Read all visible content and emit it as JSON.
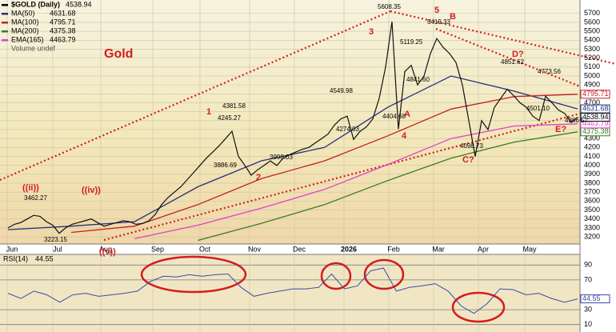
{
  "chart_data": {
    "type": "line",
    "title": "$GOLD (Daily)",
    "last": 4538.94,
    "annotation": "Gold",
    "x_labels": [
      "Jun",
      "Jul",
      "Aug",
      "Sep",
      "Oct",
      "Nov",
      "Dec",
      "2026",
      "Feb",
      "Mar",
      "Apr",
      "May"
    ],
    "ylim": [
      3120,
      5850
    ],
    "yticks": [
      3200,
      3300,
      3400,
      3500,
      3600,
      3700,
      3800,
      3900,
      4000,
      4100,
      4200,
      4300,
      4400,
      4500,
      4600,
      4700,
      4800,
      4900,
      5000,
      5100,
      5200,
      5300,
      5400,
      5500,
      5600,
      5700
    ],
    "grid": true,
    "series": [
      {
        "color": "#111111",
        "values": [
          3300,
          3340,
          3360,
          3400,
          3440,
          3430,
          3370,
          3330,
          3240,
          3300,
          3340,
          3360,
          3380,
          3400,
          3360,
          3320,
          3340,
          3360,
          3380,
          3370,
          3340,
          3350,
          3380,
          3450,
          3560,
          3640,
          3700,
          3760,
          3840,
          3920,
          4000,
          4080,
          4150,
          4220,
          4300,
          4381,
          4100,
          4000,
          3890,
          3950,
          4000,
          4050,
          3998,
          4080,
          4120,
          4150,
          4180,
          4200,
          4250,
          4300,
          4350,
          4450,
          4520,
          4550,
          4290,
          4380,
          4430,
          4520,
          4750,
          5100,
          5608,
          4405,
          5050,
          5119,
          4900,
          5000,
          5250,
          5419,
          5320,
          5250,
          5150,
          4900,
          4500,
          4099,
          4500,
          4400,
          4650,
          4750,
          4852,
          4780,
          4700,
          4650,
          4550,
          4501,
          4774,
          4700,
          4620,
          4580,
          4480,
          4539
        ]
      }
    ],
    "overlays": [
      {
        "name": "MA(50)",
        "last": 4631.68,
        "color": "#26317e",
        "values": [
          3280,
          3320,
          3370,
          3760,
          4050,
          4200,
          4650,
          5000,
          4830,
          4632
        ]
      },
      {
        "name": "MA(100)",
        "last": 4795.71,
        "color": "#c42020",
        "values": [
          null,
          3250,
          3320,
          3560,
          3850,
          4050,
          4330,
          4630,
          4770,
          4796
        ]
      },
      {
        "name": "MA(200)",
        "last": 4375.38,
        "color": "#3b7d23",
        "values": [
          null,
          null,
          null,
          3160,
          3350,
          3560,
          3830,
          4080,
          4260,
          4375
        ]
      },
      {
        "name": "EMA(165)",
        "last": 4463.79,
        "color": "#e040c8",
        "values": [
          null,
          null,
          3180,
          3330,
          3520,
          3730,
          4010,
          4300,
          4440,
          4464
        ]
      }
    ],
    "legend_extra": "Volume undef",
    "point_labels": [
      "3462.27",
      "3223.15",
      "4381.58",
      "3886.69",
      "4245.27",
      "3998.03",
      "4549.98",
      "4274.03",
      "5608.35",
      "4404.68",
      "5119.25",
      "4841.60",
      "5419.33",
      "4098.73",
      "4851.62",
      "4773.56",
      "4501.10",
      "4366.57"
    ],
    "wave_labels": [
      "((ii))",
      "((iv))",
      "((v))",
      "1",
      "2",
      "3",
      "4",
      "5",
      "A",
      "B",
      "C?",
      "D?",
      "E?"
    ],
    "rsi": {
      "title": "RSI(14)",
      "last": 44.55,
      "color": "#3a4aa8",
      "ylim": [
        0,
        100
      ],
      "yticks": [
        10,
        30,
        70,
        90
      ],
      "values": [
        52,
        45,
        55,
        50,
        40,
        50,
        52,
        48,
        50,
        52,
        55,
        68,
        75,
        74,
        77,
        75,
        77,
        78,
        60,
        48,
        52,
        55,
        58,
        58,
        60,
        78,
        58,
        62,
        82,
        86,
        55,
        60,
        62,
        65,
        55,
        35,
        25,
        38,
        58,
        57,
        50,
        52,
        45,
        40,
        44.55
      ]
    }
  }
}
